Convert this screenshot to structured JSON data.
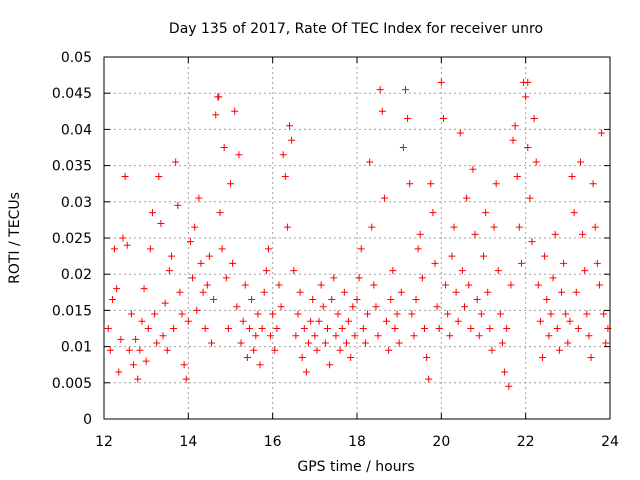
{
  "colors": {
    "series": "#ff0000",
    "grid": "#a0a0a0",
    "frame": "#000000"
  },
  "chart_data": {
    "type": "scatter",
    "title": "Day 135 of 2017, Rate Of TEC Index for receiver unro",
    "xlabel": "GPS time / hours",
    "ylabel": "ROTI / TECUs",
    "xlim": [
      12,
      24
    ],
    "ylim": [
      0,
      0.05
    ],
    "grid": true,
    "legend": "none",
    "marker": "plus",
    "xticks": [
      "12",
      "14",
      "16",
      "18",
      "20",
      "22",
      "24"
    ],
    "yticks": [
      "0",
      "0.005",
      "0.01",
      "0.015",
      "0.02",
      "0.025",
      "0.03",
      "0.035",
      "0.04",
      "0.045",
      "0.05"
    ],
    "series": [
      {
        "points": [
          [
            12.1,
            0.0125
          ],
          [
            12.15,
            0.0095
          ],
          [
            12.2,
            0.0165
          ],
          [
            12.25,
            0.0235
          ],
          [
            12.3,
            0.018
          ],
          [
            12.35,
            0.0065
          ],
          [
            12.4,
            0.011
          ],
          [
            12.45,
            0.025
          ],
          [
            12.5,
            0.0335
          ],
          [
            12.55,
            0.024
          ],
          [
            12.6,
            0.0095
          ],
          [
            12.65,
            0.0145
          ],
          [
            12.7,
            0.0075
          ],
          [
            12.75,
            0.011
          ],
          [
            12.8,
            0.0055
          ],
          [
            12.85,
            0.0095
          ],
          [
            12.9,
            0.0135
          ],
          [
            12.95,
            0.018
          ],
          [
            13.0,
            0.008
          ],
          [
            13.05,
            0.0125
          ],
          [
            13.1,
            0.0235
          ],
          [
            13.15,
            0.0285
          ],
          [
            13.2,
            0.0145
          ],
          [
            13.25,
            0.0105
          ],
          [
            13.3,
            0.0335
          ],
          [
            13.35,
            0.027
          ],
          [
            13.4,
            0.0115
          ],
          [
            13.45,
            0.016
          ],
          [
            13.5,
            0.0095
          ],
          [
            13.55,
            0.0205
          ],
          [
            13.6,
            0.0225
          ],
          [
            13.65,
            0.0125
          ],
          [
            13.7,
            0.0355
          ],
          [
            13.75,
            0.0295
          ],
          [
            13.8,
            0.0175
          ],
          [
            13.85,
            0.0145
          ],
          [
            13.9,
            0.0075
          ],
          [
            13.95,
            0.0055
          ],
          [
            14.0,
            0.0135
          ],
          [
            14.05,
            0.0245
          ],
          [
            14.1,
            0.0195
          ],
          [
            14.15,
            0.0265
          ],
          [
            14.2,
            0.015
          ],
          [
            14.25,
            0.0305
          ],
          [
            14.3,
            0.0215
          ],
          [
            14.35,
            0.0175
          ],
          [
            14.4,
            0.0125
          ],
          [
            14.45,
            0.0185
          ],
          [
            14.5,
            0.0225
          ],
          [
            14.55,
            0.0105
          ],
          [
            14.6,
            0.0165
          ],
          [
            14.65,
            0.042
          ],
          [
            14.7,
            0.0445
          ],
          [
            14.75,
            0.0285
          ],
          [
            14.8,
            0.0235
          ],
          [
            14.85,
            0.0375
          ],
          [
            14.9,
            0.0195
          ],
          [
            14.95,
            0.0125
          ],
          [
            15.0,
            0.0325
          ],
          [
            15.05,
            0.0215
          ],
          [
            15.1,
            0.0425
          ],
          [
            15.15,
            0.0155
          ],
          [
            15.2,
            0.0365
          ],
          [
            15.25,
            0.0105
          ],
          [
            15.3,
            0.0135
          ],
          [
            15.35,
            0.0185
          ],
          [
            15.4,
            0.0085
          ],
          [
            15.45,
            0.0125
          ],
          [
            15.5,
            0.0165
          ],
          [
            15.55,
            0.0095
          ],
          [
            15.6,
            0.0115
          ],
          [
            15.65,
            0.0145
          ],
          [
            15.7,
            0.0075
          ],
          [
            15.75,
            0.0125
          ],
          [
            15.8,
            0.0175
          ],
          [
            15.85,
            0.0205
          ],
          [
            15.9,
            0.0235
          ],
          [
            15.95,
            0.0115
          ],
          [
            16.0,
            0.0145
          ],
          [
            16.05,
            0.0095
          ],
          [
            16.1,
            0.0125
          ],
          [
            16.15,
            0.0185
          ],
          [
            16.2,
            0.0155
          ],
          [
            16.25,
            0.0365
          ],
          [
            16.3,
            0.0335
          ],
          [
            16.35,
            0.0265
          ],
          [
            16.4,
            0.0405
          ],
          [
            16.45,
            0.0385
          ],
          [
            16.5,
            0.0205
          ],
          [
            16.55,
            0.0115
          ],
          [
            16.6,
            0.0145
          ],
          [
            16.65,
            0.0175
          ],
          [
            16.7,
            0.0085
          ],
          [
            16.75,
            0.0125
          ],
          [
            16.8,
            0.0065
          ],
          [
            16.85,
            0.0105
          ],
          [
            16.9,
            0.0135
          ],
          [
            16.95,
            0.0165
          ],
          [
            17.0,
            0.0115
          ],
          [
            17.05,
            0.0095
          ],
          [
            17.1,
            0.0135
          ],
          [
            17.15,
            0.0185
          ],
          [
            17.2,
            0.0155
          ],
          [
            17.25,
            0.0105
          ],
          [
            17.3,
            0.0125
          ],
          [
            17.35,
            0.0075
          ],
          [
            17.4,
            0.0165
          ],
          [
            17.45,
            0.0195
          ],
          [
            17.5,
            0.0115
          ],
          [
            17.55,
            0.0145
          ],
          [
            17.6,
            0.0095
          ],
          [
            17.65,
            0.0125
          ],
          [
            17.7,
            0.0175
          ],
          [
            17.75,
            0.0105
          ],
          [
            17.8,
            0.0135
          ],
          [
            17.85,
            0.0085
          ],
          [
            17.9,
            0.0155
          ],
          [
            17.95,
            0.0115
          ],
          [
            18.0,
            0.0165
          ],
          [
            18.05,
            0.0195
          ],
          [
            18.1,
            0.0235
          ],
          [
            18.15,
            0.0125
          ],
          [
            18.2,
            0.0105
          ],
          [
            18.25,
            0.0145
          ],
          [
            18.3,
            0.0355
          ],
          [
            18.35,
            0.0265
          ],
          [
            18.4,
            0.0185
          ],
          [
            18.45,
            0.0155
          ],
          [
            18.5,
            0.0115
          ],
          [
            18.55,
            0.0455
          ],
          [
            18.6,
            0.0425
          ],
          [
            18.65,
            0.0305
          ],
          [
            18.7,
            0.0135
          ],
          [
            18.75,
            0.0095
          ],
          [
            18.8,
            0.0165
          ],
          [
            18.85,
            0.0205
          ],
          [
            18.9,
            0.0125
          ],
          [
            18.95,
            0.0145
          ],
          [
            19.0,
            0.0105
          ],
          [
            19.05,
            0.0175
          ],
          [
            19.1,
            0.0375
          ],
          [
            19.15,
            0.0455
          ],
          [
            19.2,
            0.0415
          ],
          [
            19.25,
            0.0325
          ],
          [
            19.3,
            0.0145
          ],
          [
            19.35,
            0.0115
          ],
          [
            19.4,
            0.0165
          ],
          [
            19.45,
            0.0235
          ],
          [
            19.5,
            0.0255
          ],
          [
            19.55,
            0.0195
          ],
          [
            19.6,
            0.0125
          ],
          [
            19.65,
            0.0085
          ],
          [
            19.7,
            0.0055
          ],
          [
            19.75,
            0.0325
          ],
          [
            19.8,
            0.0285
          ],
          [
            19.85,
            0.0215
          ],
          [
            19.9,
            0.0155
          ],
          [
            19.95,
            0.0125
          ],
          [
            20.0,
            0.0465
          ],
          [
            20.05,
            0.0415
          ],
          [
            20.1,
            0.0185
          ],
          [
            20.15,
            0.0145
          ],
          [
            20.2,
            0.0115
          ],
          [
            20.25,
            0.0225
          ],
          [
            20.3,
            0.0265
          ],
          [
            20.35,
            0.0175
          ],
          [
            20.4,
            0.0135
          ],
          [
            20.45,
            0.0395
          ],
          [
            20.5,
            0.0205
          ],
          [
            20.55,
            0.0155
          ],
          [
            20.6,
            0.0305
          ],
          [
            20.65,
            0.0185
          ],
          [
            20.7,
            0.0125
          ],
          [
            20.75,
            0.0345
          ],
          [
            20.8,
            0.0255
          ],
          [
            20.85,
            0.0165
          ],
          [
            20.9,
            0.0115
          ],
          [
            20.95,
            0.0145
          ],
          [
            21.0,
            0.0225
          ],
          [
            21.05,
            0.0285
          ],
          [
            21.1,
            0.0175
          ],
          [
            21.15,
            0.0125
          ],
          [
            21.2,
            0.0095
          ],
          [
            21.25,
            0.0265
          ],
          [
            21.3,
            0.0325
          ],
          [
            21.35,
            0.0205
          ],
          [
            21.4,
            0.0145
          ],
          [
            21.45,
            0.0105
          ],
          [
            21.5,
            0.0065
          ],
          [
            21.55,
            0.0125
          ],
          [
            21.6,
            0.0045
          ],
          [
            21.65,
            0.0185
          ],
          [
            21.7,
            0.0385
          ],
          [
            21.75,
            0.0405
          ],
          [
            21.8,
            0.0335
          ],
          [
            21.85,
            0.0265
          ],
          [
            21.9,
            0.0215
          ],
          [
            21.95,
            0.0465
          ],
          [
            22.0,
            0.0445
          ],
          [
            22.05,
            0.0375
          ],
          [
            22.1,
            0.0305
          ],
          [
            22.15,
            0.0245
          ],
          [
            22.2,
            0.0415
          ],
          [
            22.25,
            0.0355
          ],
          [
            22.3,
            0.0185
          ],
          [
            22.35,
            0.0135
          ],
          [
            22.4,
            0.0085
          ],
          [
            22.45,
            0.0225
          ],
          [
            22.5,
            0.0165
          ],
          [
            22.55,
            0.0115
          ],
          [
            22.6,
            0.0145
          ],
          [
            22.65,
            0.0195
          ],
          [
            22.7,
            0.0255
          ],
          [
            22.75,
            0.0125
          ],
          [
            22.8,
            0.0095
          ],
          [
            22.85,
            0.0175
          ],
          [
            22.9,
            0.0215
          ],
          [
            22.95,
            0.0145
          ],
          [
            23.0,
            0.0105
          ],
          [
            23.05,
            0.0135
          ],
          [
            23.1,
            0.0335
          ],
          [
            23.15,
            0.0285
          ],
          [
            23.2,
            0.0175
          ],
          [
            23.25,
            0.0125
          ],
          [
            23.3,
            0.0355
          ],
          [
            23.35,
            0.0255
          ],
          [
            23.4,
            0.0205
          ],
          [
            23.45,
            0.0145
          ],
          [
            23.5,
            0.0115
          ],
          [
            23.55,
            0.0085
          ],
          [
            23.6,
            0.0325
          ],
          [
            23.65,
            0.0265
          ],
          [
            23.7,
            0.0215
          ],
          [
            23.75,
            0.0185
          ],
          [
            23.8,
            0.0395
          ],
          [
            23.85,
            0.0145
          ],
          [
            23.9,
            0.0105
          ],
          [
            23.95,
            0.0125
          ],
          [
            22.05,
            0.0465
          ],
          [
            14.72,
            0.0445
          ]
        ]
      }
    ]
  }
}
